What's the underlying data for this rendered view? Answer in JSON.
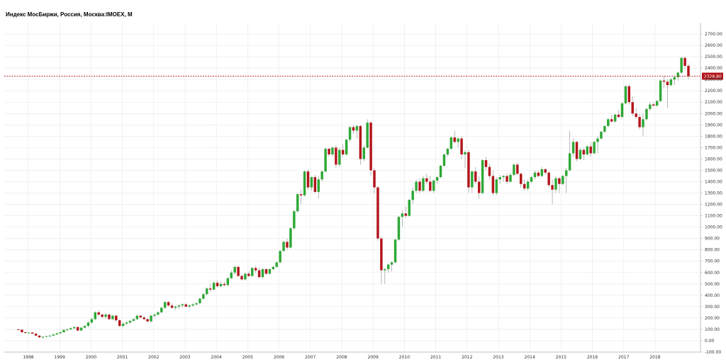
{
  "header": {
    "title": "Индекс МосБиржи, Россия, Москва:IMOEX, M"
  },
  "colors": {
    "up": "#2ea836",
    "down": "#b3151b",
    "wick": "#9a9a9a",
    "grid": "#e8e8e8",
    "axis": "#b0b0b0",
    "price_line": "#b3151b"
  },
  "chart_data": {
    "type": "candlestick",
    "title": "Индекс МосБиржи, Россия, Москва:IMOEX, M",
    "interval": "M",
    "xlabel": "",
    "ylabel": "",
    "ylim": [
      -100,
      2800
    ],
    "y_ticks": [
      "2700.00",
      "2600.00",
      "2500.00",
      "2400.00",
      "2300.00",
      "2200.00",
      "2100.00",
      "2000.00",
      "1900.00",
      "1800.00",
      "1700.00",
      "1600.00",
      "1500.00",
      "1400.00",
      "1300.00",
      "1200.00",
      "1100.00",
      "1000.00",
      "900.00",
      "800.00",
      "700.00",
      "600.00",
      "500.00",
      "400.00",
      "300.00",
      "200.00",
      "100.00",
      "0.00",
      "-100.00"
    ],
    "x_ticks": [
      "1998",
      "1999",
      "2000",
      "2001",
      "2002",
      "2003",
      "2004",
      "2005",
      "2006",
      "2007",
      "2008",
      "2009",
      "2010",
      "2011",
      "2012",
      "2013",
      "2014",
      "2015",
      "2016",
      "2017",
      "2018"
    ],
    "last_price": 2328.8,
    "last_price_label": "2328.80",
    "grid": true,
    "series": [
      {
        "values": [
          [
            100,
            100,
            95,
            97
          ],
          [
            97,
            98,
            70,
            75
          ],
          [
            75,
            80,
            60,
            70
          ],
          [
            70,
            75,
            65,
            72
          ],
          [
            72,
            74,
            60,
            62
          ],
          [
            62,
            65,
            40,
            45
          ],
          [
            45,
            50,
            25,
            30
          ],
          [
            30,
            40,
            20,
            35
          ],
          [
            35,
            45,
            30,
            40
          ],
          [
            40,
            50,
            35,
            45
          ],
          [
            45,
            60,
            40,
            55
          ],
          [
            55,
            70,
            50,
            65
          ],
          [
            65,
            80,
            60,
            75
          ],
          [
            75,
            100,
            70,
            95
          ],
          [
            95,
            110,
            85,
            100
          ],
          [
            100,
            120,
            90,
            110
          ],
          [
            110,
            130,
            100,
            120
          ],
          [
            120,
            125,
            85,
            90
          ],
          [
            90,
            120,
            85,
            115
          ],
          [
            115,
            135,
            110,
            130
          ],
          [
            130,
            170,
            120,
            160
          ],
          [
            160,
            200,
            150,
            190
          ],
          [
            190,
            260,
            180,
            250
          ],
          [
            250,
            270,
            215,
            230
          ],
          [
            230,
            240,
            200,
            210
          ],
          [
            210,
            240,
            190,
            230
          ],
          [
            230,
            240,
            180,
            190
          ],
          [
            190,
            230,
            180,
            220
          ],
          [
            220,
            230,
            170,
            180
          ],
          [
            180,
            190,
            120,
            130
          ],
          [
            130,
            160,
            120,
            150
          ],
          [
            150,
            170,
            140,
            160
          ],
          [
            160,
            180,
            150,
            175
          ],
          [
            175,
            200,
            170,
            190
          ],
          [
            190,
            230,
            180,
            220
          ],
          [
            220,
            230,
            200,
            205
          ],
          [
            205,
            220,
            180,
            190
          ],
          [
            190,
            200,
            160,
            170
          ],
          [
            170,
            230,
            160,
            220
          ],
          [
            220,
            240,
            200,
            230
          ],
          [
            230,
            260,
            220,
            250
          ],
          [
            250,
            300,
            240,
            290
          ],
          [
            290,
            350,
            280,
            340
          ],
          [
            340,
            350,
            300,
            310
          ],
          [
            310,
            330,
            280,
            290
          ],
          [
            290,
            310,
            270,
            300
          ],
          [
            300,
            320,
            280,
            310
          ],
          [
            310,
            330,
            290,
            320
          ],
          [
            320,
            330,
            295,
            300
          ],
          [
            300,
            320,
            290,
            310
          ],
          [
            310,
            330,
            300,
            320
          ],
          [
            320,
            340,
            310,
            330
          ],
          [
            330,
            380,
            320,
            370
          ],
          [
            370,
            420,
            360,
            410
          ],
          [
            410,
            470,
            400,
            460
          ],
          [
            460,
            500,
            430,
            450
          ],
          [
            450,
            520,
            440,
            510
          ],
          [
            510,
            530,
            470,
            480
          ],
          [
            480,
            520,
            470,
            500
          ],
          [
            500,
            520,
            480,
            490
          ],
          [
            490,
            560,
            480,
            550
          ],
          [
            550,
            620,
            540,
            600
          ],
          [
            600,
            660,
            580,
            650
          ],
          [
            650,
            660,
            560,
            570
          ],
          [
            570,
            580,
            530,
            540
          ],
          [
            540,
            600,
            530,
            590
          ],
          [
            590,
            610,
            560,
            570
          ],
          [
            570,
            650,
            560,
            640
          ],
          [
            640,
            660,
            600,
            620
          ],
          [
            620,
            640,
            550,
            560
          ],
          [
            560,
            640,
            550,
            630
          ],
          [
            630,
            640,
            580,
            590
          ],
          [
            590,
            640,
            580,
            630
          ],
          [
            630,
            660,
            620,
            650
          ],
          [
            650,
            700,
            640,
            690
          ],
          [
            690,
            800,
            680,
            790
          ],
          [
            790,
            880,
            780,
            870
          ],
          [
            870,
            900,
            800,
            820
          ],
          [
            820,
            1000,
            810,
            990
          ],
          [
            990,
            1150,
            980,
            1140
          ],
          [
            1140,
            1300,
            1130,
            1290
          ],
          [
            1290,
            1330,
            1200,
            1280
          ],
          [
            1280,
            1500,
            1270,
            1490
          ],
          [
            1490,
            1510,
            1330,
            1350
          ],
          [
            1350,
            1450,
            1320,
            1440
          ],
          [
            1440,
            1460,
            1300,
            1310
          ],
          [
            1310,
            1450,
            1250,
            1420
          ],
          [
            1420,
            1500,
            1400,
            1490
          ],
          [
            1490,
            1700,
            1480,
            1690
          ],
          [
            1690,
            1700,
            1620,
            1640
          ],
          [
            1640,
            1710,
            1620,
            1700
          ],
          [
            1700,
            1720,
            1520,
            1550
          ],
          [
            1550,
            1700,
            1530,
            1680
          ],
          [
            1680,
            1730,
            1620,
            1640
          ],
          [
            1640,
            1780,
            1630,
            1770
          ],
          [
            1770,
            1890,
            1750,
            1880
          ],
          [
            1880,
            1900,
            1820,
            1850
          ],
          [
            1850,
            1900,
            1780,
            1890
          ],
          [
            1890,
            1900,
            1550,
            1600
          ],
          [
            1600,
            1720,
            1580,
            1700
          ],
          [
            1700,
            1950,
            1690,
            1920
          ],
          [
            1920,
            1930,
            1450,
            1500
          ],
          [
            1500,
            1520,
            1300,
            1350
          ],
          [
            1350,
            1360,
            880,
            900
          ],
          [
            900,
            920,
            500,
            620
          ],
          [
            620,
            640,
            500,
            630
          ],
          [
            630,
            680,
            600,
            670
          ],
          [
            670,
            700,
            610,
            690
          ],
          [
            690,
            900,
            680,
            890
          ],
          [
            890,
            1100,
            880,
            1090
          ],
          [
            1090,
            1150,
            1000,
            1120
          ],
          [
            1120,
            1180,
            1080,
            1100
          ],
          [
            1100,
            1250,
            1090,
            1240
          ],
          [
            1240,
            1350,
            1200,
            1320
          ],
          [
            1320,
            1420,
            1300,
            1400
          ],
          [
            1400,
            1430,
            1300,
            1320
          ],
          [
            1320,
            1450,
            1310,
            1430
          ],
          [
            1430,
            1470,
            1380,
            1400
          ],
          [
            1400,
            1450,
            1310,
            1320
          ],
          [
            1320,
            1420,
            1300,
            1410
          ],
          [
            1410,
            1450,
            1380,
            1440
          ],
          [
            1440,
            1550,
            1430,
            1540
          ],
          [
            1540,
            1650,
            1530,
            1640
          ],
          [
            1640,
            1700,
            1620,
            1690
          ],
          [
            1690,
            1800,
            1680,
            1790
          ],
          [
            1790,
            1850,
            1740,
            1750
          ],
          [
            1750,
            1790,
            1700,
            1780
          ],
          [
            1780,
            1800,
            1600,
            1640
          ],
          [
            1640,
            1680,
            1520,
            1660
          ],
          [
            1660,
            1680,
            1300,
            1350
          ],
          [
            1350,
            1500,
            1300,
            1490
          ],
          [
            1490,
            1530,
            1380,
            1400
          ],
          [
            1400,
            1450,
            1250,
            1300
          ],
          [
            1300,
            1600,
            1290,
            1590
          ],
          [
            1590,
            1620,
            1500,
            1530
          ],
          [
            1530,
            1560,
            1420,
            1450
          ],
          [
            1450,
            1500,
            1280,
            1300
          ],
          [
            1300,
            1440,
            1280,
            1420
          ],
          [
            1420,
            1460,
            1380,
            1440
          ],
          [
            1440,
            1460,
            1400,
            1450
          ],
          [
            1450,
            1470,
            1380,
            1400
          ],
          [
            1400,
            1480,
            1390,
            1460
          ],
          [
            1460,
            1560,
            1450,
            1550
          ],
          [
            1550,
            1570,
            1460,
            1470
          ],
          [
            1470,
            1480,
            1350,
            1380
          ],
          [
            1380,
            1420,
            1320,
            1340
          ],
          [
            1340,
            1420,
            1320,
            1400
          ],
          [
            1400,
            1450,
            1390,
            1440
          ],
          [
            1440,
            1500,
            1420,
            1480
          ],
          [
            1480,
            1500,
            1440,
            1450
          ],
          [
            1450,
            1530,
            1440,
            1510
          ],
          [
            1510,
            1520,
            1460,
            1480
          ],
          [
            1480,
            1490,
            1350,
            1370
          ],
          [
            1370,
            1420,
            1200,
            1330
          ],
          [
            1330,
            1450,
            1300,
            1430
          ],
          [
            1430,
            1440,
            1300,
            1380
          ],
          [
            1380,
            1460,
            1370,
            1450
          ],
          [
            1450,
            1520,
            1300,
            1500
          ],
          [
            1500,
            1850,
            1490,
            1650
          ],
          [
            1650,
            1780,
            1620,
            1750
          ],
          [
            1750,
            1760,
            1580,
            1600
          ],
          [
            1600,
            1700,
            1590,
            1680
          ],
          [
            1680,
            1700,
            1590,
            1640
          ],
          [
            1640,
            1720,
            1630,
            1710
          ],
          [
            1710,
            1750,
            1620,
            1650
          ],
          [
            1650,
            1760,
            1640,
            1750
          ],
          [
            1750,
            1800,
            1650,
            1780
          ],
          [
            1780,
            1850,
            1770,
            1840
          ],
          [
            1840,
            1900,
            1830,
            1890
          ],
          [
            1890,
            1960,
            1880,
            1950
          ],
          [
            1950,
            1990,
            1920,
            1930
          ],
          [
            1930,
            2000,
            1920,
            1990
          ],
          [
            1990,
            2030,
            1960,
            1970
          ],
          [
            1970,
            2100,
            1960,
            2090
          ],
          [
            2090,
            2250,
            2080,
            2240
          ],
          [
            2240,
            2260,
            2080,
            2100
          ],
          [
            2100,
            2150,
            1980,
            2000
          ],
          [
            2000,
            2050,
            1950,
            1970
          ],
          [
            1970,
            2000,
            1860,
            1880
          ],
          [
            1880,
            2000,
            1800,
            1950
          ],
          [
            1950,
            2050,
            1940,
            2040
          ],
          [
            2040,
            2100,
            2020,
            2080
          ],
          [
            2080,
            2100,
            2060,
            2070
          ],
          [
            2070,
            2120,
            2060,
            2110
          ],
          [
            2110,
            2300,
            2100,
            2290
          ],
          [
            2290,
            2330,
            2220,
            2280
          ],
          [
            2280,
            2300,
            2050,
            2250
          ],
          [
            2250,
            2310,
            2240,
            2300
          ],
          [
            2300,
            2330,
            2250,
            2320
          ],
          [
            2320,
            2370,
            2290,
            2360
          ],
          [
            2360,
            2500,
            2350,
            2490
          ],
          [
            2490,
            2500,
            2400,
            2420
          ],
          [
            2420,
            2440,
            2300,
            2329
          ]
        ]
      }
    ]
  }
}
